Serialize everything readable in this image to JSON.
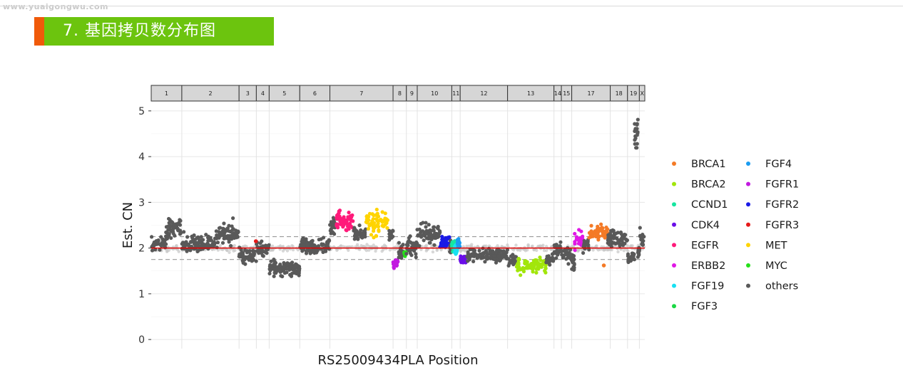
{
  "watermark": "www.yuaigongwu.com",
  "section": {
    "title": "7. 基因拷贝数分布图"
  },
  "chart_data": {
    "type": "scatter",
    "xlabel": "RS25009434PLA Position",
    "ylabel": "Est. CN",
    "ylim": [
      -0.2,
      5.2
    ],
    "yticks": [
      0,
      1,
      2,
      3,
      4,
      5
    ],
    "reference_line": 2,
    "threshold_lines": [
      1.75,
      2.25
    ],
    "grid": true,
    "legend_position": "right",
    "chromosomes": [
      {
        "name": "1",
        "start": 0.0,
        "end": 0.062
      },
      {
        "name": "2",
        "start": 0.062,
        "end": 0.178
      },
      {
        "name": "3",
        "start": 0.178,
        "end": 0.213
      },
      {
        "name": "4",
        "start": 0.213,
        "end": 0.239
      },
      {
        "name": "5",
        "start": 0.239,
        "end": 0.301
      },
      {
        "name": "6",
        "start": 0.301,
        "end": 0.362
      },
      {
        "name": "7",
        "start": 0.362,
        "end": 0.49
      },
      {
        "name": "8",
        "start": 0.49,
        "end": 0.517
      },
      {
        "name": "9",
        "start": 0.517,
        "end": 0.539
      },
      {
        "name": "10",
        "start": 0.539,
        "end": 0.609
      },
      {
        "name": "11",
        "start": 0.609,
        "end": 0.626
      },
      {
        "name": "12",
        "start": 0.626,
        "end": 0.722
      },
      {
        "name": "13",
        "start": 0.722,
        "end": 0.816
      },
      {
        "name": "14",
        "start": 0.816,
        "end": 0.831
      },
      {
        "name": "15",
        "start": 0.831,
        "end": 0.852
      },
      {
        "name": "17",
        "start": 0.852,
        "end": 0.93
      },
      {
        "name": "18",
        "start": 0.93,
        "end": 0.965
      },
      {
        "name": "19",
        "start": 0.965,
        "end": 0.989
      },
      {
        "name": "X",
        "start": 0.989,
        "end": 1.0
      }
    ],
    "legend": [
      {
        "name": "BRCA1",
        "color": "#f47a26"
      },
      {
        "name": "BRCA2",
        "color": "#a2e60b"
      },
      {
        "name": "CCND1",
        "color": "#16e6a0"
      },
      {
        "name": "CDK4",
        "color": "#6a0ee8"
      },
      {
        "name": "EGFR",
        "color": "#ff1a7a"
      },
      {
        "name": "ERBB2",
        "color": "#e018e6"
      },
      {
        "name": "FGF19",
        "color": "#18e0f2"
      },
      {
        "name": "FGF3",
        "color": "#1ad844"
      },
      {
        "name": "FGF4",
        "color": "#1a9cf0"
      },
      {
        "name": "FGFR1",
        "color": "#c21ae0"
      },
      {
        "name": "FGFR2",
        "color": "#1a1ae6"
      },
      {
        "name": "FGFR3",
        "color": "#e61a1a"
      },
      {
        "name": "MET",
        "color": "#ffd400"
      },
      {
        "name": "MYC",
        "color": "#26e01a"
      },
      {
        "name": "others",
        "color": "#595959"
      }
    ],
    "clusters": [
      {
        "series": "others",
        "x": [
          0.0,
          0.03
        ],
        "y": 2.1,
        "spread": 0.12
      },
      {
        "series": "others",
        "x": [
          0.03,
          0.062
        ],
        "y": 2.45,
        "spread": 0.18
      },
      {
        "series": "others",
        "x": [
          0.062,
          0.13
        ],
        "y": 2.1,
        "spread": 0.15
      },
      {
        "series": "others",
        "x": [
          0.13,
          0.178
        ],
        "y": 2.3,
        "spread": 0.2
      },
      {
        "series": "others",
        "x": [
          0.178,
          0.213
        ],
        "y": 1.8,
        "spread": 0.15
      },
      {
        "series": "others",
        "x": [
          0.213,
          0.239
        ],
        "y": 2.0,
        "spread": 0.12
      },
      {
        "series": "others",
        "x": [
          0.239,
          0.301
        ],
        "y": 1.55,
        "spread": 0.15
      },
      {
        "series": "others",
        "x": [
          0.301,
          0.362
        ],
        "y": 2.05,
        "spread": 0.15
      },
      {
        "series": "others",
        "x": [
          0.362,
          0.375
        ],
        "y": 2.45,
        "spread": 0.2
      },
      {
        "series": "EGFR",
        "x": [
          0.375,
          0.41
        ],
        "y": 2.6,
        "spread": 0.18
      },
      {
        "series": "others",
        "x": [
          0.41,
          0.435
        ],
        "y": 2.3,
        "spread": 0.15
      },
      {
        "series": "MET",
        "x": [
          0.435,
          0.48
        ],
        "y": 2.55,
        "spread": 0.22
      },
      {
        "series": "others",
        "x": [
          0.48,
          0.49
        ],
        "y": 2.3,
        "spread": 0.12
      },
      {
        "series": "FGFR1",
        "x": [
          0.49,
          0.5
        ],
        "y": 1.65,
        "spread": 0.12
      },
      {
        "series": "others",
        "x": [
          0.5,
          0.512
        ],
        "y": 1.95,
        "spread": 0.18
      },
      {
        "series": "MYC",
        "x": [
          0.512,
          0.517
        ],
        "y": 1.9,
        "spread": 0.06
      },
      {
        "series": "others",
        "x": [
          0.517,
          0.539
        ],
        "y": 2.05,
        "spread": 0.18
      },
      {
        "series": "others",
        "x": [
          0.539,
          0.585
        ],
        "y": 2.3,
        "spread": 0.18
      },
      {
        "series": "FGFR2",
        "x": [
          0.585,
          0.605
        ],
        "y": 2.15,
        "spread": 0.12
      },
      {
        "series": "others",
        "x": [
          0.605,
          0.609
        ],
        "y": 2.0,
        "spread": 0.1
      },
      {
        "series": "CCND1",
        "x": [
          0.609,
          0.615
        ],
        "y": 2.05,
        "spread": 0.12
      },
      {
        "series": "FGF19",
        "x": [
          0.615,
          0.62
        ],
        "y": 1.95,
        "spread": 0.1
      },
      {
        "series": "FGF4",
        "x": [
          0.62,
          0.626
        ],
        "y": 2.1,
        "spread": 0.1
      },
      {
        "series": "CDK4",
        "x": [
          0.626,
          0.64
        ],
        "y": 1.75,
        "spread": 0.08
      },
      {
        "series": "others",
        "x": [
          0.64,
          0.722
        ],
        "y": 1.85,
        "spread": 0.12
      },
      {
        "series": "others",
        "x": [
          0.722,
          0.74
        ],
        "y": 1.75,
        "spread": 0.1
      },
      {
        "series": "BRCA2",
        "x": [
          0.74,
          0.8
        ],
        "y": 1.62,
        "spread": 0.14
      },
      {
        "series": "others",
        "x": [
          0.8,
          0.816
        ],
        "y": 1.75,
        "spread": 0.12
      },
      {
        "series": "others",
        "x": [
          0.816,
          0.831
        ],
        "y": 1.95,
        "spread": 0.15
      },
      {
        "series": "others",
        "x": [
          0.831,
          0.852
        ],
        "y": 1.85,
        "spread": 0.15
      },
      {
        "series": "others",
        "x": [
          0.852,
          0.858
        ],
        "y": 1.7,
        "spread": 0.15
      },
      {
        "series": "ERBB2",
        "x": [
          0.858,
          0.875
        ],
        "y": 2.15,
        "spread": 0.16
      },
      {
        "series": "others",
        "x": [
          0.875,
          0.887
        ],
        "y": 2.05,
        "spread": 0.12
      },
      {
        "series": "BRCA1",
        "x": [
          0.887,
          0.925
        ],
        "y": 2.35,
        "spread": 0.13
      },
      {
        "series": "others",
        "x": [
          0.925,
          0.93
        ],
        "y": 2.2,
        "spread": 0.1
      },
      {
        "series": "others",
        "x": [
          0.93,
          0.965
        ],
        "y": 2.2,
        "spread": 0.18
      },
      {
        "series": "others",
        "x": [
          0.965,
          0.979
        ],
        "y": 1.8,
        "spread": 0.1
      },
      {
        "series": "others",
        "x": [
          0.979,
          0.986
        ],
        "y": 4.5,
        "spread": 0.25
      },
      {
        "series": "others",
        "x": [
          0.986,
          0.989
        ],
        "y": 1.9,
        "spread": 0.1
      },
      {
        "series": "others",
        "x": [
          0.989,
          1.0
        ],
        "y": 2.2,
        "spread": 0.2
      }
    ],
    "outliers": [
      {
        "series": "BRCA1",
        "x": 0.917,
        "y": 1.62
      },
      {
        "series": "FGFR3",
        "x": 0.212,
        "y": 2.15
      }
    ]
  }
}
